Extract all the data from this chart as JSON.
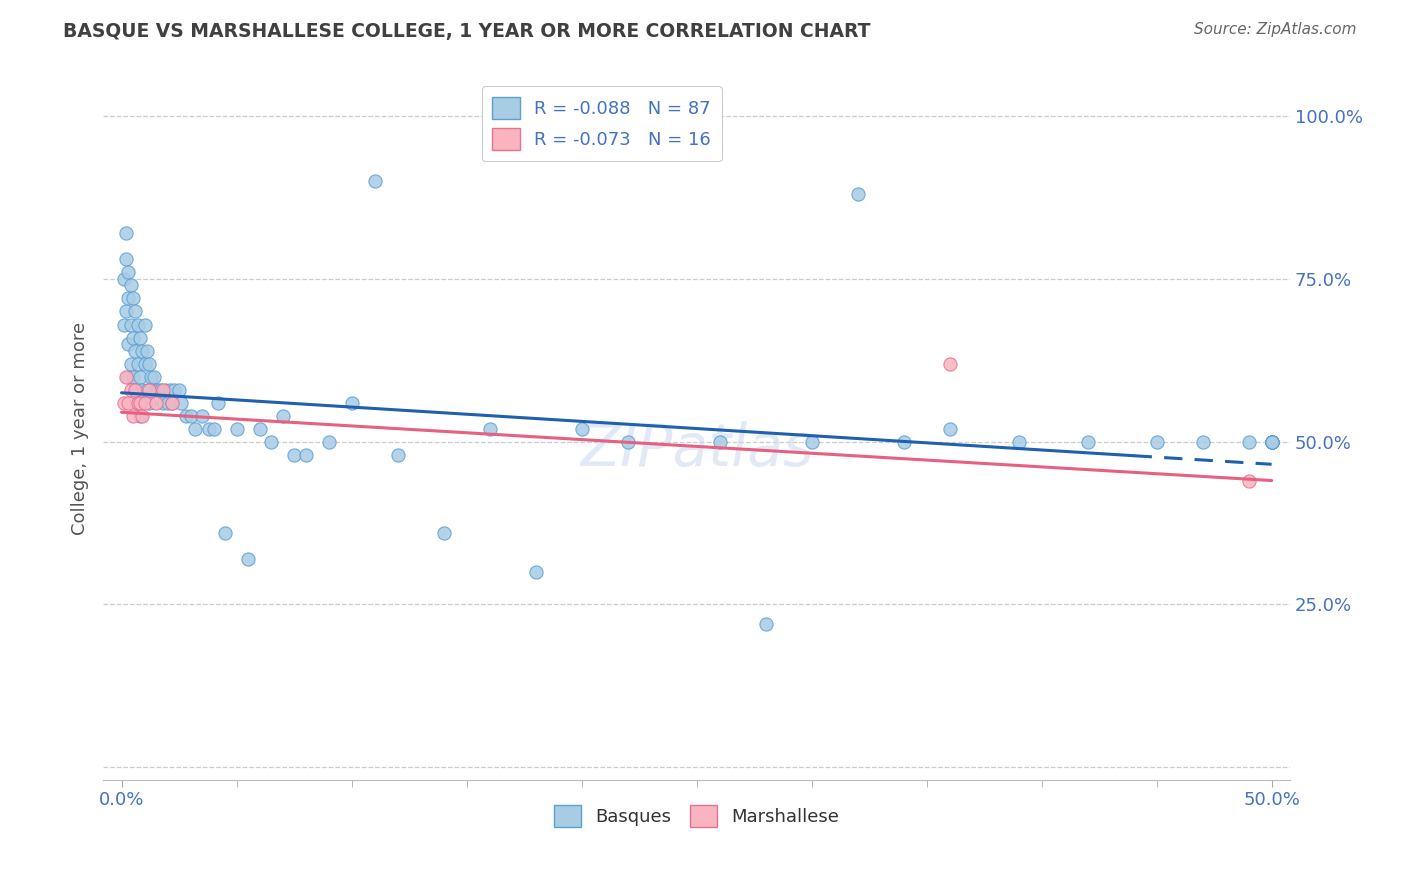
{
  "title": "BASQUE VS MARSHALLESE COLLEGE, 1 YEAR OR MORE CORRELATION CHART",
  "source": "Source: ZipAtlas.com",
  "ylabel": "College, 1 year or more",
  "xmin": 0.0,
  "xmax": 0.5,
  "ymin": 0.0,
  "ymax": 1.05,
  "ytick_vals": [
    0.0,
    0.25,
    0.5,
    0.75,
    1.0
  ],
  "ytick_labels": [
    "",
    "25.0%",
    "50.0%",
    "75.0%",
    "100.0%"
  ],
  "xtick_vals": [
    0.0,
    0.5
  ],
  "xtick_labels": [
    "0.0%",
    "50.0%"
  ],
  "basque_color": "#a8cce4",
  "basque_edge": "#5b9fd4",
  "pink_color": "#f9b4c0",
  "pink_edge": "#e87090",
  "blue_line_color": "#2060b0",
  "pink_line_color": "#e86080",
  "axis_label_color": "#4472c4",
  "title_color": "#404040",
  "grid_color": "#cccccc",
  "watermark": "ZIPatlas",
  "basque_x": [
    0.001,
    0.001,
    0.002,
    0.002,
    0.002,
    0.003,
    0.003,
    0.003,
    0.003,
    0.004,
    0.004,
    0.004,
    0.005,
    0.005,
    0.005,
    0.006,
    0.006,
    0.006,
    0.007,
    0.007,
    0.007,
    0.008,
    0.008,
    0.008,
    0.009,
    0.009,
    0.01,
    0.01,
    0.011,
    0.011,
    0.012,
    0.012,
    0.013,
    0.014,
    0.015,
    0.016,
    0.017,
    0.018,
    0.019,
    0.02,
    0.021,
    0.022,
    0.023,
    0.025,
    0.026,
    0.028,
    0.03,
    0.032,
    0.035,
    0.038,
    0.04,
    0.042,
    0.045,
    0.05,
    0.055,
    0.06,
    0.065,
    0.07,
    0.075,
    0.08,
    0.09,
    0.1,
    0.11,
    0.12,
    0.14,
    0.16,
    0.18,
    0.2,
    0.22,
    0.26,
    0.28,
    0.3,
    0.32,
    0.34,
    0.36,
    0.39,
    0.42,
    0.45,
    0.47,
    0.49,
    0.5,
    0.5,
    0.5,
    0.5,
    0.5,
    0.5,
    0.5
  ],
  "basque_y": [
    0.68,
    0.75,
    0.82,
    0.78,
    0.7,
    0.76,
    0.72,
    0.65,
    0.6,
    0.74,
    0.68,
    0.62,
    0.72,
    0.66,
    0.6,
    0.7,
    0.64,
    0.58,
    0.68,
    0.62,
    0.56,
    0.66,
    0.6,
    0.54,
    0.64,
    0.58,
    0.68,
    0.62,
    0.64,
    0.58,
    0.62,
    0.56,
    0.6,
    0.6,
    0.58,
    0.58,
    0.58,
    0.56,
    0.58,
    0.56,
    0.58,
    0.56,
    0.58,
    0.58,
    0.56,
    0.54,
    0.54,
    0.52,
    0.54,
    0.52,
    0.52,
    0.56,
    0.36,
    0.52,
    0.32,
    0.52,
    0.5,
    0.54,
    0.48,
    0.48,
    0.5,
    0.56,
    0.9,
    0.48,
    0.36,
    0.52,
    0.3,
    0.52,
    0.5,
    0.5,
    0.22,
    0.5,
    0.88,
    0.5,
    0.52,
    0.5,
    0.5,
    0.5,
    0.5,
    0.5,
    0.5,
    0.5,
    0.5,
    0.5,
    0.5,
    0.5,
    0.5
  ],
  "marshallese_x": [
    0.001,
    0.002,
    0.003,
    0.004,
    0.005,
    0.006,
    0.007,
    0.008,
    0.009,
    0.01,
    0.012,
    0.015,
    0.018,
    0.022,
    0.36,
    0.49
  ],
  "marshallese_y": [
    0.56,
    0.6,
    0.56,
    0.58,
    0.54,
    0.58,
    0.56,
    0.56,
    0.54,
    0.56,
    0.58,
    0.56,
    0.58,
    0.56,
    0.62,
    0.44
  ],
  "blue_line_x0": 0.0,
  "blue_line_x1": 0.5,
  "blue_line_y0": 0.575,
  "blue_line_y1": 0.465,
  "pink_line_x0": 0.0,
  "pink_line_x1": 0.5,
  "pink_line_y0": 0.545,
  "pink_line_y1": 0.44
}
